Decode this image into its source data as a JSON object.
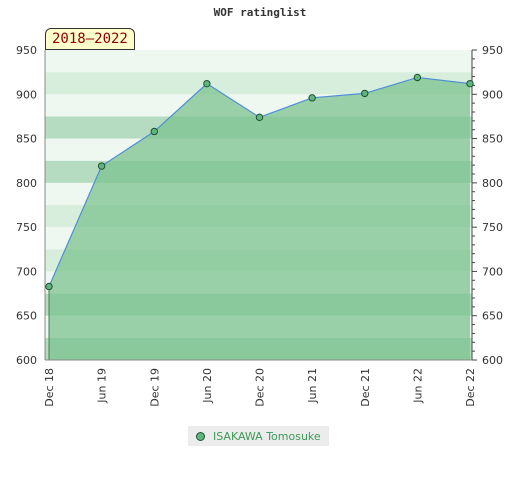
{
  "chart_data": {
    "type": "area",
    "title": "WOF ratinglist",
    "range_badge": "2018–2022",
    "categories": [
      "Dec 18",
      "Jun 19",
      "Dec 19",
      "Jun 20",
      "Dec 20",
      "Jun 21",
      "Dec 21",
      "Jun 22",
      "Dec 22"
    ],
    "series": [
      {
        "name": "ISAKAWA Tomosuke",
        "values": [
          683,
          819,
          858,
          912,
          874,
          896,
          901,
          919,
          912
        ]
      }
    ],
    "ylim": [
      600,
      950
    ],
    "yticks": [
      600,
      650,
      700,
      750,
      800,
      850,
      900,
      950
    ],
    "y_ticks_right": true,
    "grid": true,
    "legend_position": "bottom-center",
    "colors": {
      "area_fill": "#7cc38f",
      "line": "#4e8fd6",
      "marker_fill": "#5fb67f",
      "marker_stroke": "#234f32",
      "band_light": "#eef7f0",
      "band_mid": "#d8eedd",
      "band_dark": "#b5dcc0"
    }
  }
}
